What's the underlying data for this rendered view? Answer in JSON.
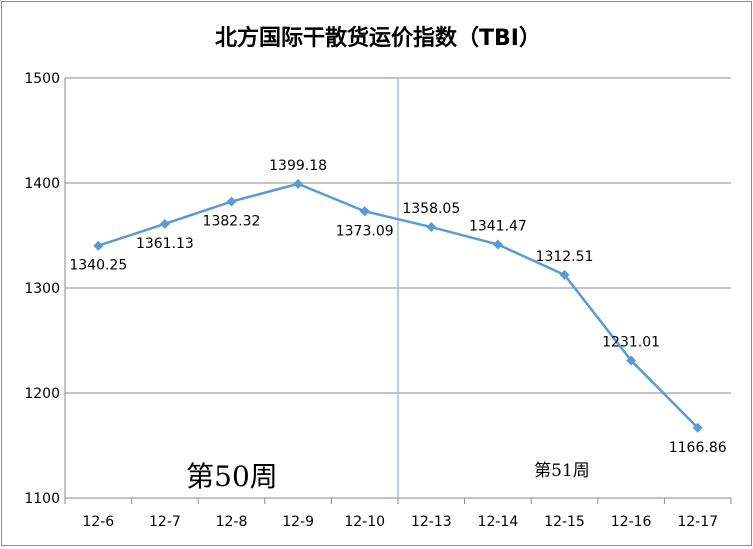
{
  "chart_data": {
    "type": "line",
    "title": "北方国际干散货运价指数（TBI）",
    "categories": [
      "12-6",
      "12-7",
      "12-8",
      "12-9",
      "12-10",
      "12-13",
      "12-14",
      "12-15",
      "12-16",
      "12-17"
    ],
    "series": [
      {
        "values": [
          1340.25,
          1361.13,
          1382.32,
          1399.18,
          1373.09,
          1358.05,
          1341.47,
          1312.51,
          1231.01,
          1166.86
        ],
        "labels": [
          "1340.25",
          "1361.13",
          "1382.32",
          "1399.18",
          "1373.09",
          "1358.05",
          "1341.47",
          "1312.51",
          "1231.01",
          "1166.86"
        ],
        "color": "#5b9bd5"
      }
    ],
    "ylim": [
      1100,
      1500
    ],
    "yticks": [
      "1100",
      "1200",
      "1300",
      "1400",
      "1500"
    ],
    "grid": true,
    "annotations": {
      "week_left": "第50周",
      "week_right": "第51周"
    },
    "divider_color": "#9dc3e6"
  }
}
